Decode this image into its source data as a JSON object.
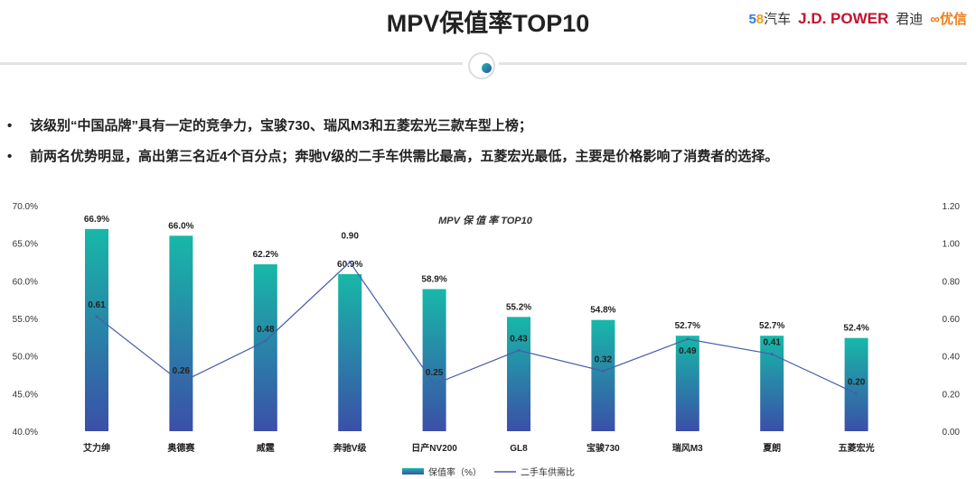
{
  "header": {
    "title": "MPV保值率TOP10",
    "logos": {
      "l58_a": "5",
      "l58_b": "8",
      "l58_c": "汽车",
      "jd": "J.D. POWER",
      "jundi": "君迪",
      "youxin": "优信"
    }
  },
  "bullets": [
    "该级别“中国品牌”具有一定的竞争力，宝骏730、瑞风M3和五菱宏光三款车型上榜；",
    "前两名优势明显，高出第三名近4个百分点；奔驰V级的二手车供需比最高，五菱宏光最低，主要是价格影响了消费者的选择。"
  ],
  "chart_data": {
    "type": "bar",
    "title": "MPV 保 值 率 TOP10",
    "categories": [
      "艾力绅",
      "奥德赛",
      "威霆",
      "奔驰V级",
      "日产NV200",
      "GL8",
      "宝骏730",
      "瑞风M3",
      "夏朗",
      "五菱宏光"
    ],
    "series": [
      {
        "name": "保值率（%）",
        "type": "bar",
        "axis": "left",
        "values": [
          66.9,
          66.0,
          62.2,
          60.9,
          58.9,
          55.2,
          54.8,
          52.7,
          52.7,
          52.4
        ],
        "labels": [
          "66.9%",
          "66.0%",
          "62.2%",
          "60.9%",
          "58.9%",
          "55.2%",
          "54.8%",
          "52.7%",
          "52.7%",
          "52.4%"
        ]
      },
      {
        "name": "二手车供需比",
        "type": "line",
        "axis": "right",
        "values": [
          0.61,
          0.26,
          0.48,
          0.9,
          0.25,
          0.43,
          0.32,
          0.49,
          0.41,
          0.2
        ],
        "labels": [
          "0.61",
          "0.26",
          "0.48",
          "0.90",
          "0.25",
          "0.43",
          "0.32",
          "0.49",
          "0.41",
          "0.20"
        ]
      }
    ],
    "y_left": {
      "range": [
        40,
        70
      ],
      "ticks": [
        "40.0%",
        "45.0%",
        "50.0%",
        "55.0%",
        "60.0%",
        "65.0%",
        "70.0%"
      ]
    },
    "y_right": {
      "range": [
        0,
        1.2
      ],
      "ticks": [
        "0.00",
        "0.20",
        "0.40",
        "0.60",
        "0.80",
        "1.00",
        "1.20"
      ]
    },
    "legend_position": "bottom",
    "colors": {
      "bar_top": "#17b8a8",
      "bar_bottom": "#3b4fa8",
      "line": "#4a5ca8"
    }
  }
}
